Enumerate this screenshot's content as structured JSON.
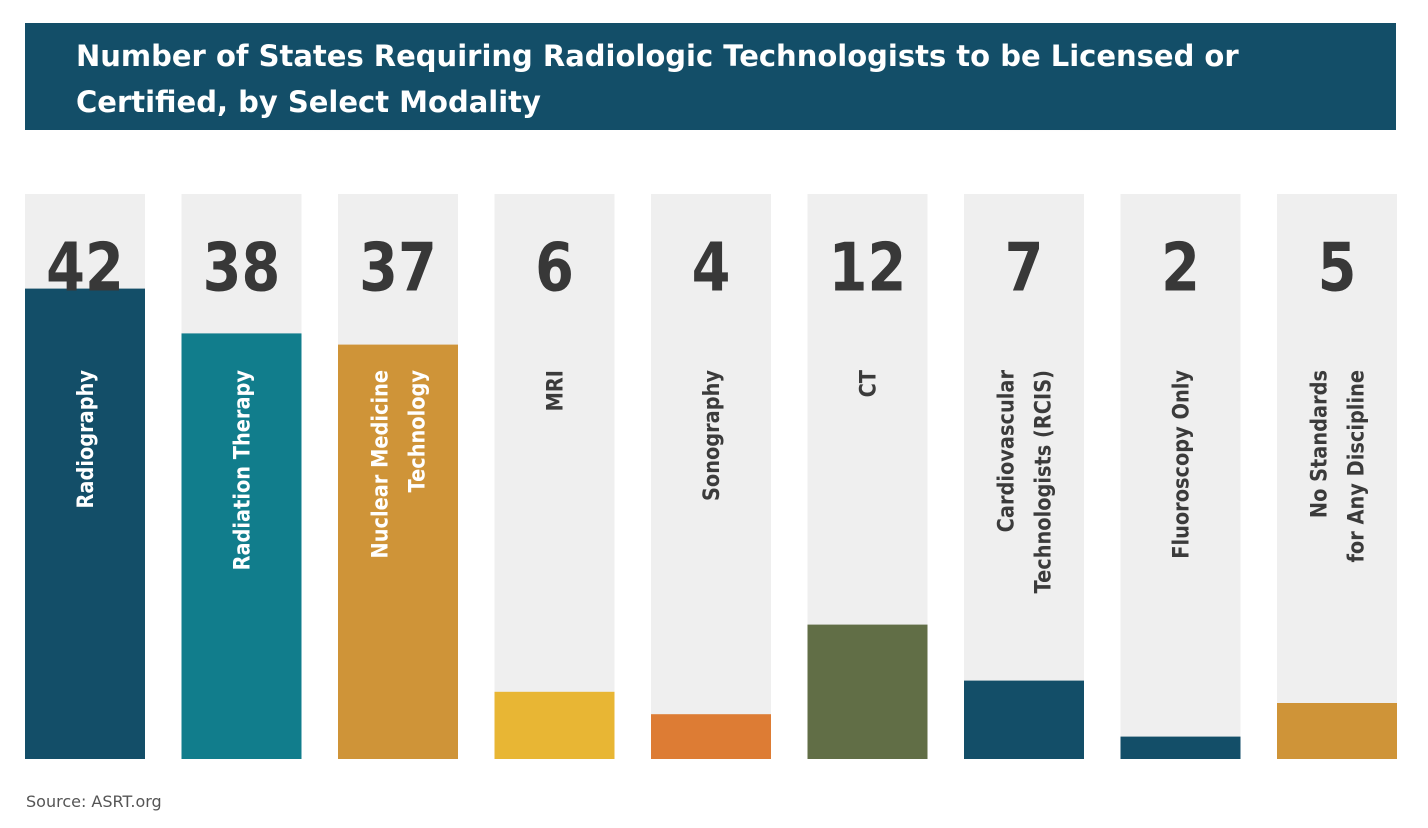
{
  "chart_data": {
    "type": "bar",
    "title": "Number of States Requiring Radiologic Technologists to be Licensed or Certified, by Select Modality",
    "xlabel": "",
    "ylabel": "",
    "ylim": [
      0,
      50
    ],
    "grid": false,
    "legend": "none",
    "categories": [
      [
        "Radiography"
      ],
      [
        "Radiation Therapy"
      ],
      [
        "Nuclear Medicine",
        "Technology"
      ],
      [
        "MRI"
      ],
      [
        "Sonography"
      ],
      [
        "CT"
      ],
      [
        "Cardiovascular",
        "Technologists (RCIS)"
      ],
      [
        "Fluoroscopy Only"
      ],
      [
        "No Standards",
        "for Any Discipline"
      ]
    ],
    "values": [
      42,
      38,
      37,
      6,
      4,
      12,
      7,
      2,
      5
    ],
    "value_labels": [
      "42",
      "38",
      "37",
      "6",
      "4",
      "12",
      "7",
      "2",
      "5"
    ],
    "colors": [
      "#134e68",
      "#117d8c",
      "#cf9438",
      "#e8b634",
      "#dd7c34",
      "#616e46",
      "#134e68",
      "#134e68",
      "#cf9438"
    ],
    "label_colors": [
      "#ffffff",
      "#ffffff",
      "#ffffff",
      "#3b3b3b",
      "#3b3b3b",
      "#3b3b3b",
      "#3b3b3b",
      "#3b3b3b",
      "#3b3b3b"
    ],
    "track_color": "#efefef",
    "number_color": "#383838"
  },
  "source": "Source: ASRT.org"
}
